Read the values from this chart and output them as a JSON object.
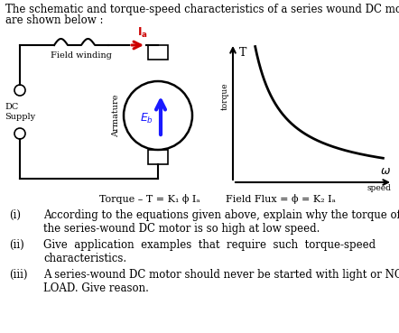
{
  "title_line1": "The schematic and torque-speed characteristics of a series wound DC motor",
  "title_line2": "are shown below :",
  "formula_text1": "Torque – T = K₁ ϕ Iₐ",
  "formula_text2": "Field Flux = ϕ = K₂ Iₐ",
  "item_nums": [
    "(i)",
    "(ii)",
    "(iii)"
  ],
  "item_texts": [
    "According to the equations given above, explain why the torque of\nthe series-wound DC motor is so high at low speed.",
    "Give  application  examples  that  require  such  torque-speed\ncharacteristics.",
    "A series-wound DC motor should never be started with light or NO\nLOAD. Give reason."
  ],
  "bg_color": "#ffffff",
  "text_color": "#000000",
  "curve_color": "#000000",
  "arrow_color": "#cc0000",
  "blue_arrow_color": "#1a1aff",
  "font_size_title": 8.5,
  "font_size_body": 8.5,
  "font_size_small": 7.0,
  "font_size_formula": 8.0
}
